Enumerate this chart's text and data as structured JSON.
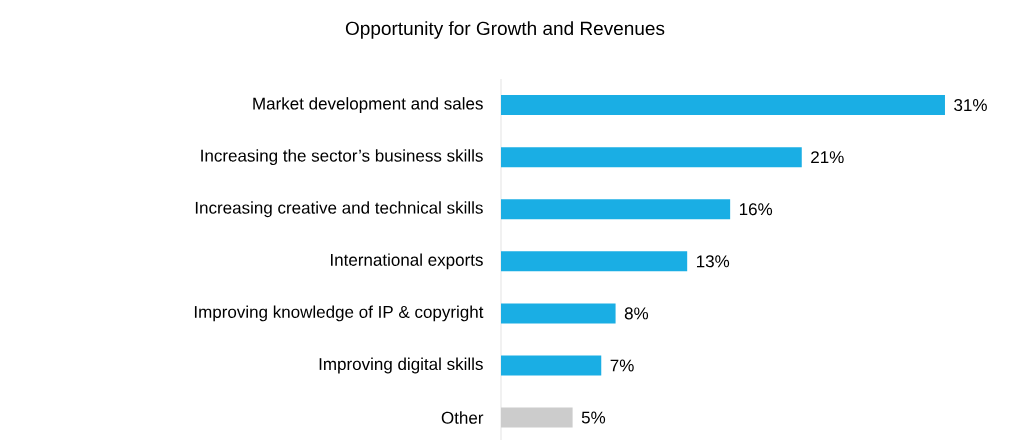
{
  "chart_data": {
    "type": "bar",
    "orientation": "horizontal",
    "title": "Opportunity for Growth and Revenues",
    "categories": [
      "Market development and sales",
      "Increasing the sector’s business skills",
      "Increasing creative and technical skills",
      "International exports",
      "Improving knowledge of IP & copyright",
      "Improving digital skills",
      "Other"
    ],
    "values": [
      31,
      21,
      16,
      13,
      8,
      7,
      5
    ],
    "colors": [
      "#1aaee4",
      "#1aaee4",
      "#1aaee4",
      "#1aaee4",
      "#1aaee4",
      "#1aaee4",
      "#cccccc"
    ],
    "value_labels": [
      "31%",
      "21%",
      "16%",
      "13%",
      "8%",
      "7%",
      "5%"
    ]
  }
}
